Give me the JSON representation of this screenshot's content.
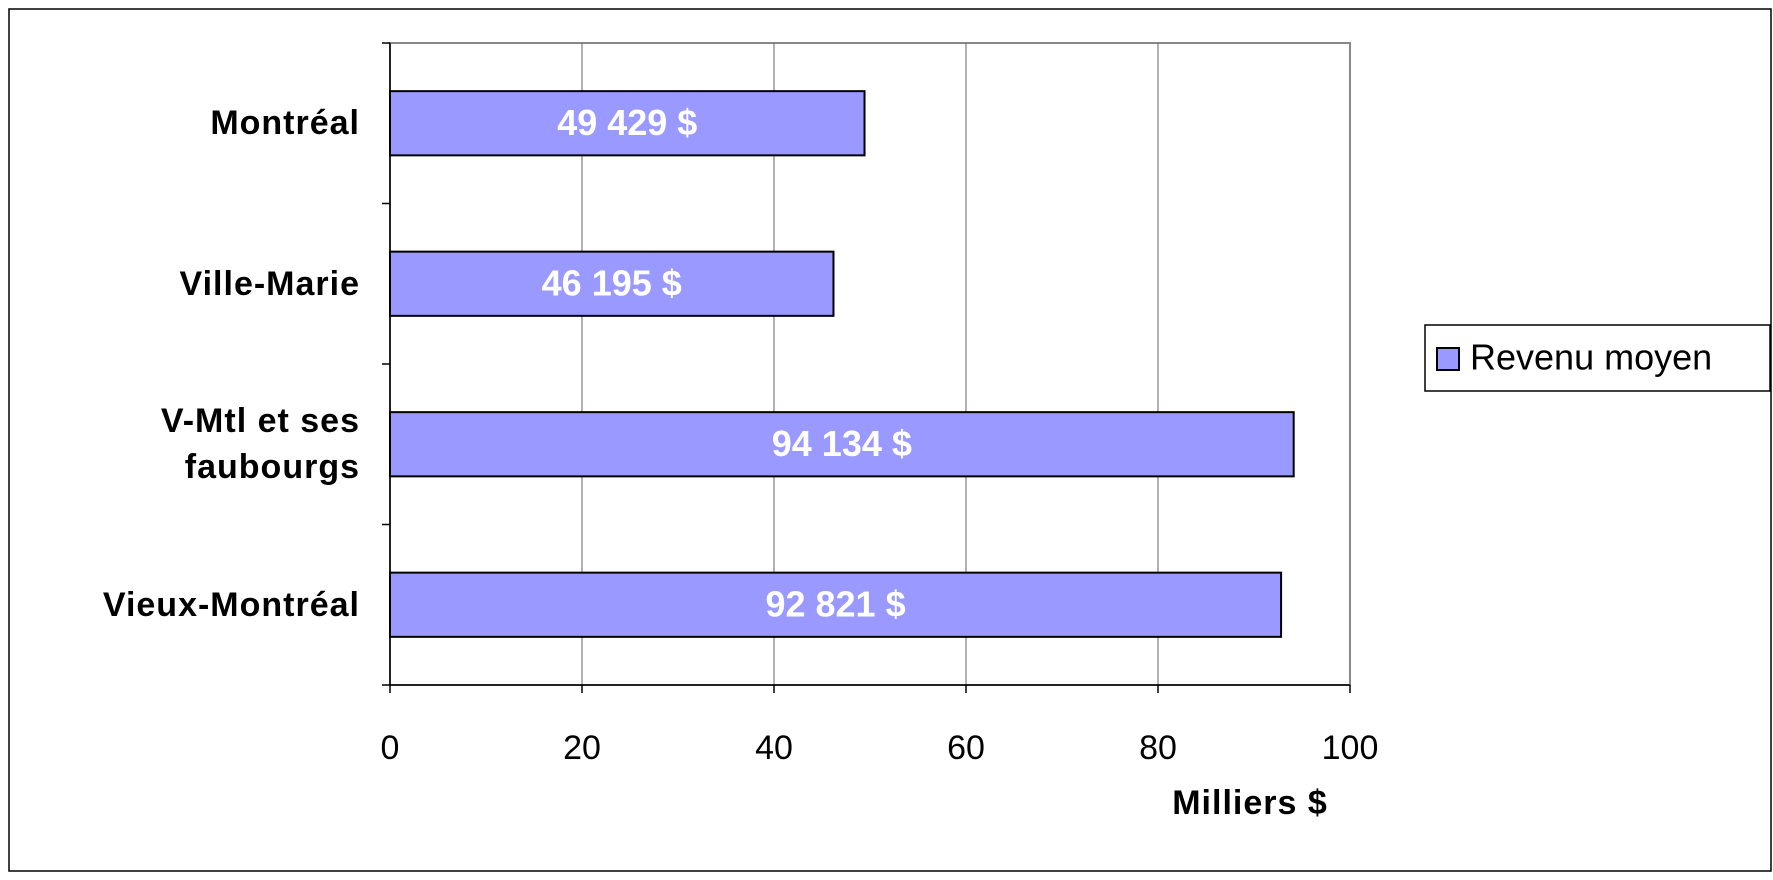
{
  "chart_data": {
    "type": "hbar",
    "categories": [
      "Montréal",
      "Ville-Marie",
      "V-Mtl et ses faubourgs",
      "Vieux-Montréal"
    ],
    "series": [
      {
        "name": "Revenu moyen",
        "color": "#9999ff",
        "values": [
          49.429,
          46.195,
          94.134,
          92.821
        ],
        "value_labels": [
          "49 429 $",
          "46 195 $",
          "94 134 $",
          "92 821 $"
        ]
      }
    ],
    "xlabel": "Milliers $",
    "xlim": [
      0,
      100
    ],
    "xticks": [
      0,
      20,
      40,
      60,
      80,
      100
    ],
    "grid": true,
    "legend": "right"
  }
}
